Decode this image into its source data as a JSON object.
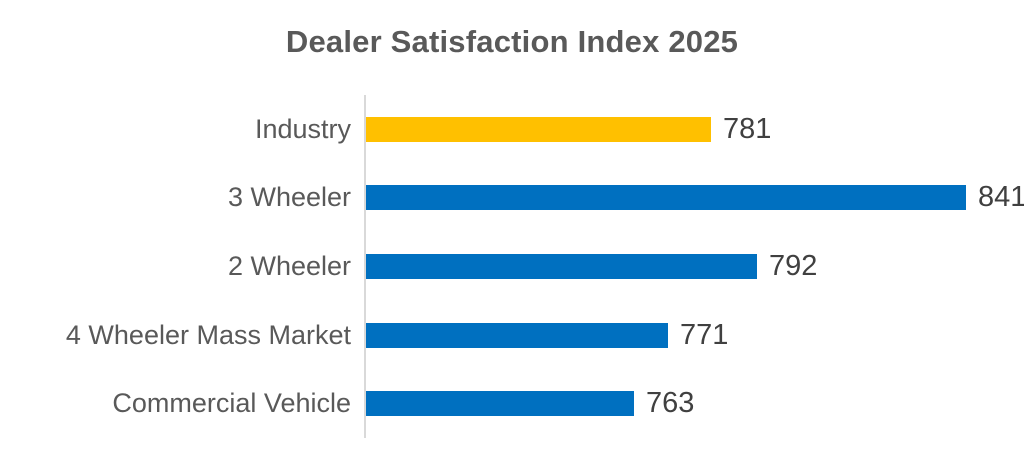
{
  "chart_data": {
    "type": "bar",
    "orientation": "horizontal",
    "title": "Dealer Satisfaction Index 2025",
    "categories": [
      "Industry",
      "3 Wheeler",
      "2 Wheeler",
      "4 Wheeler Mass Market",
      "Commercial Vehicle"
    ],
    "values": [
      781,
      841,
      792,
      771,
      763
    ],
    "bar_colors": [
      "#FFC000",
      "#0070C0",
      "#0070C0",
      "#0070C0",
      "#0070C0"
    ],
    "xlim": [
      700,
      850
    ],
    "data_labels": true,
    "legend": "none",
    "grid": "off",
    "axis_line_color": "#D9D9D9",
    "title_color": "#595959",
    "category_label_color": "#595959",
    "value_label_color": "#404040"
  }
}
